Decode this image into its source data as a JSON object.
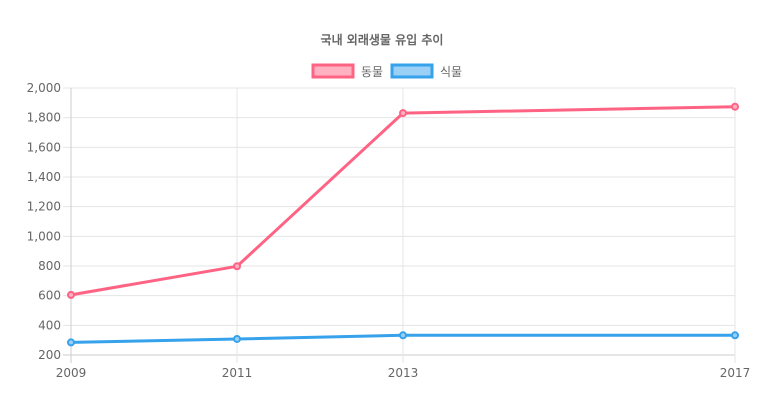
{
  "chart_data": {
    "type": "line",
    "title": "국내 외래생물 유입 추이",
    "xlabel": "",
    "ylabel": "",
    "categories": [
      "2009",
      "2011",
      "2013",
      "2017"
    ],
    "x": [
      2009,
      2011,
      2013,
      2017
    ],
    "ylim": [
      200,
      2000
    ],
    "y_ticks": [
      200,
      400,
      600,
      800,
      1000,
      1200,
      1400,
      1600,
      1800,
      2000
    ],
    "y_tick_labels": [
      "200",
      "400",
      "600",
      "800",
      "1,000",
      "1,200",
      "1,400",
      "1,600",
      "1,800",
      "2,000"
    ],
    "grid": true,
    "legend": "top-center",
    "series": [
      {
        "name": "동물",
        "values": [
          605,
          798,
          1831,
          1874
        ],
        "color": "#ff6384",
        "fill": "#ffb1c1"
      },
      {
        "name": "식물",
        "values": [
          285,
          308,
          333,
          333
        ],
        "color": "#36a2eb",
        "fill": "#9ad0f5"
      }
    ]
  }
}
